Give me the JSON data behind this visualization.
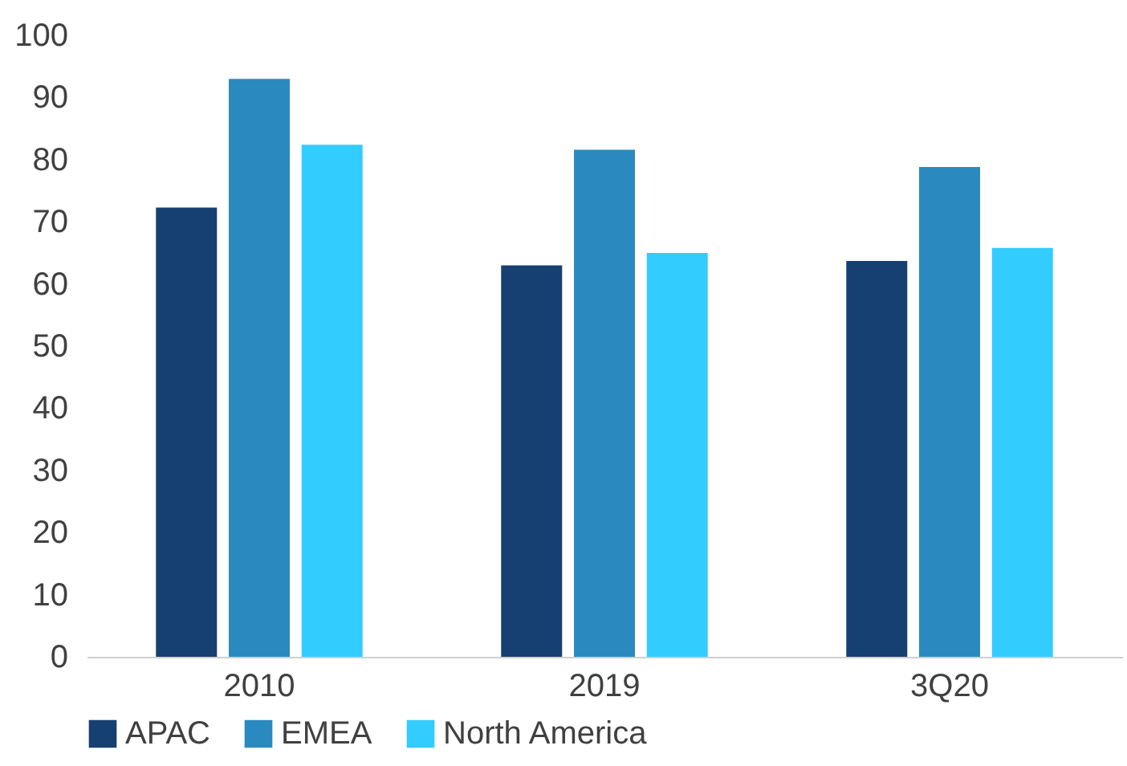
{
  "chart_data": {
    "type": "bar",
    "categories": [
      "2010",
      "2019",
      "3Q20"
    ],
    "series": [
      {
        "name": "APAC",
        "color": "#174072",
        "values": [
          72.3,
          63,
          63.7
        ]
      },
      {
        "name": "EMEA",
        "color": "#2a8abf",
        "values": [
          93,
          81.6,
          78.8
        ]
      },
      {
        "name": "North America",
        "color": "#33ccff",
        "values": [
          82.4,
          65,
          65.8
        ]
      }
    ],
    "ylim": [
      0,
      100
    ],
    "yticks": [
      0,
      10,
      20,
      30,
      40,
      50,
      60,
      70,
      80,
      90,
      100
    ],
    "grid": false,
    "legend": "bottom"
  }
}
